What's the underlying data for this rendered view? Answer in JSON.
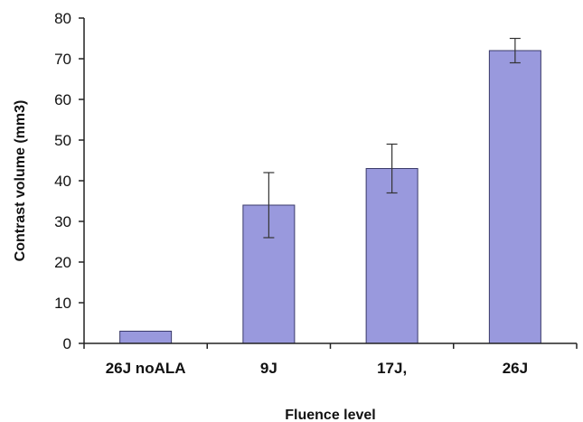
{
  "chart_data": {
    "type": "bar",
    "title": "",
    "xlabel": "Fluence level",
    "ylabel": "Contrast volume (mm3)",
    "categories": [
      "26J noALA",
      "9J",
      "17J,",
      "26J"
    ],
    "values": [
      3,
      34,
      43,
      72
    ],
    "error_low": [
      3,
      26,
      37,
      69
    ],
    "error_high": [
      3,
      42,
      49,
      75
    ],
    "ylim": [
      0,
      80
    ],
    "yticks": [
      0,
      10,
      20,
      30,
      40,
      50,
      60,
      70,
      80
    ],
    "grid": false,
    "legend": "none",
    "colors": {
      "bar_fill": "#9999dd",
      "bar_stroke": "#3a3a6a",
      "axis": "#222222"
    }
  }
}
